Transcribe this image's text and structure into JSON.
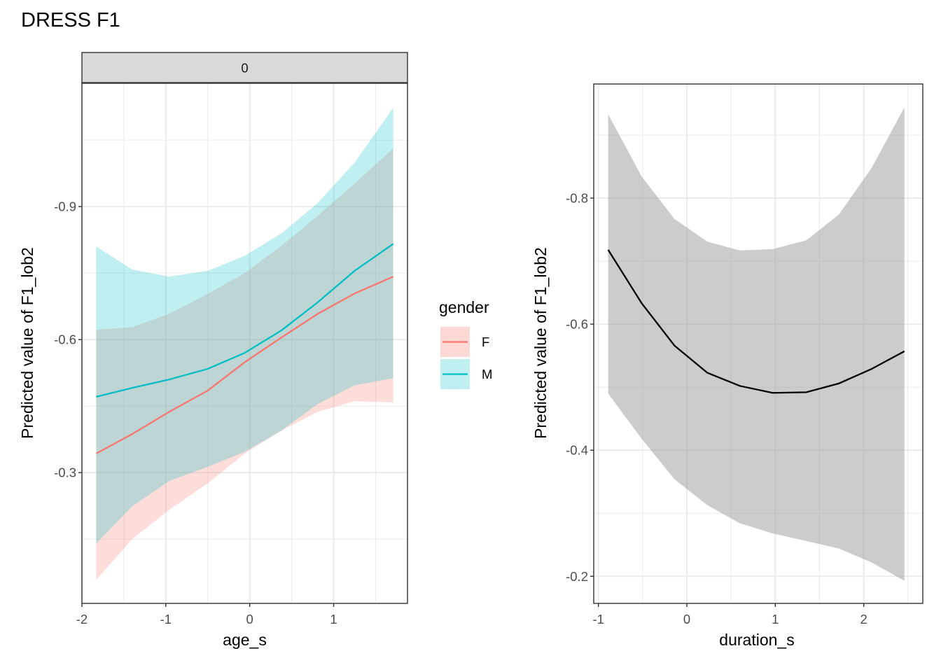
{
  "figure": {
    "title": "DRESS F1"
  },
  "chart_data": [
    {
      "type": "line",
      "panel": "left",
      "facet_strip": "0",
      "title": "",
      "xlabel": "age_s",
      "ylabel": "Predicted value of F1_lob2",
      "xlim": [
        -2.0,
        1.88
      ],
      "ylim": [
        -1.178,
        -0.005
      ],
      "y_reversed": true,
      "x_ticks": [
        -2,
        -1,
        0,
        1
      ],
      "x_tick_labels": [
        "-2",
        "-1",
        "0",
        "1"
      ],
      "y_ticks": [
        -0.9,
        -0.6,
        -0.3
      ],
      "y_tick_labels": [
        "-0.9",
        "-0.6",
        "-0.3"
      ],
      "x_minor": [
        -1.5,
        -0.5,
        0.5,
        1.5
      ],
      "y_minor": [
        -1.05,
        -0.75,
        -0.45,
        -0.15
      ],
      "grid": true,
      "legend": {
        "title": "gender",
        "placement": "right"
      },
      "x": [
        -1.83,
        -1.4,
        -0.96,
        -0.5,
        -0.06,
        0.38,
        0.81,
        1.25,
        1.71
      ],
      "series": [
        {
          "name": "F",
          "color": "#F8766D",
          "fill": "#F8766D",
          "values": [
            -0.343,
            -0.387,
            -0.437,
            -0.485,
            -0.549,
            -0.605,
            -0.658,
            -0.704,
            -0.742
          ],
          "lower": [
            -0.058,
            -0.15,
            -0.216,
            -0.276,
            -0.343,
            -0.395,
            -0.437,
            -0.461,
            -0.458
          ],
          "upper": [
            -0.622,
            -0.628,
            -0.658,
            -0.703,
            -0.75,
            -0.812,
            -0.879,
            -0.952,
            -1.031
          ]
        },
        {
          "name": "M",
          "color": "#00BFC4",
          "fill": "#00BFC4",
          "values": [
            -0.471,
            -0.491,
            -0.51,
            -0.534,
            -0.57,
            -0.621,
            -0.684,
            -0.755,
            -0.816
          ],
          "lower": [
            -0.14,
            -0.224,
            -0.281,
            -0.313,
            -0.347,
            -0.395,
            -0.455,
            -0.497,
            -0.513
          ],
          "upper": [
            -0.81,
            -0.758,
            -0.742,
            -0.755,
            -0.789,
            -0.84,
            -0.908,
            -0.999,
            -1.123
          ]
        }
      ]
    },
    {
      "type": "line",
      "panel": "right",
      "title": "",
      "xlabel": "duration_s",
      "ylabel": "Predicted value of F1_lob2",
      "xlim": [
        -1.053,
        2.668
      ],
      "ylim": [
        -0.981,
        -0.157
      ],
      "y_reversed": true,
      "x_ticks": [
        -1,
        0,
        1,
        2
      ],
      "x_tick_labels": [
        "-1",
        "0",
        "1",
        "2"
      ],
      "y_ticks": [
        -0.8,
        -0.6,
        -0.4,
        -0.2
      ],
      "y_tick_labels": [
        "-0.8",
        "-0.6",
        "-0.4",
        "-0.2"
      ],
      "x_minor": [
        -0.5,
        0.5,
        1.5,
        2.5
      ],
      "y_minor": [
        -0.9,
        -0.7,
        -0.5,
        -0.3
      ],
      "grid": true,
      "x": [
        -0.89,
        -0.51,
        -0.14,
        0.23,
        0.6,
        0.97,
        1.35,
        1.72,
        2.09,
        2.46
      ],
      "series": [
        {
          "name": "duration_s",
          "color": "#000000",
          "fill": "#999999",
          "values": [
            -0.718,
            -0.633,
            -0.566,
            -0.523,
            -0.502,
            -0.491,
            -0.492,
            -0.506,
            -0.529,
            -0.557
          ],
          "lower": [
            -0.49,
            -0.418,
            -0.354,
            -0.313,
            -0.284,
            -0.268,
            -0.256,
            -0.244,
            -0.222,
            -0.193
          ],
          "upper": [
            -0.933,
            -0.834,
            -0.767,
            -0.731,
            -0.717,
            -0.719,
            -0.733,
            -0.774,
            -0.848,
            -0.944
          ]
        }
      ]
    }
  ]
}
